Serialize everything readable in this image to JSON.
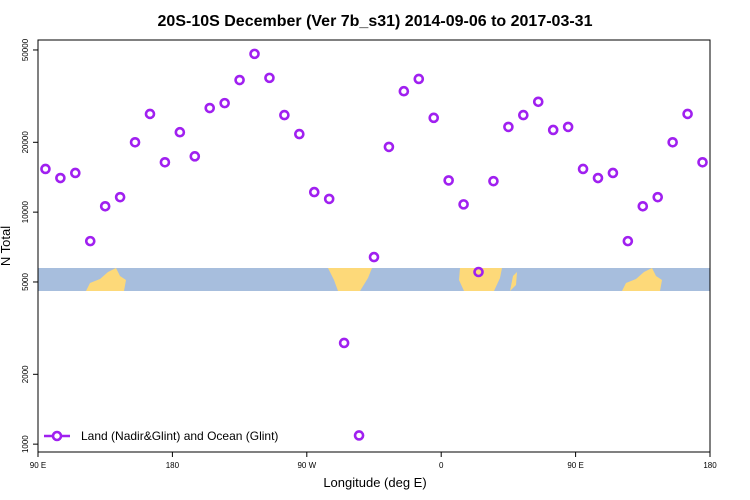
{
  "chart_data": {
    "type": "scatter",
    "title": "20S-10S December (Ver 7b_s31)   2014-09-06 to 2017-03-31",
    "x_label": "Longitude (deg E)",
    "y_label": "N Total",
    "xlim": [
      90,
      540
    ],
    "xticks": [
      {
        "value": 90,
        "label": "90 E"
      },
      {
        "value": 180,
        "label": "180"
      },
      {
        "value": 270,
        "label": "90 W"
      },
      {
        "value": 360,
        "label": "0"
      },
      {
        "value": 450,
        "label": "90 E"
      },
      {
        "value": 540,
        "label": "180"
      }
    ],
    "ylim": [
      925,
      55200
    ],
    "yticks": [
      1000,
      2000,
      5000,
      10000,
      20000,
      50000
    ],
    "yscale": "log",
    "legend_position": "bottom-left",
    "series": [
      {
        "name": "Land (Nadir&Glint) and Ocean (Glint)",
        "color": "#a020f0",
        "x": [
          95,
          105,
          115,
          125,
          135,
          145,
          155,
          165,
          175,
          185,
          195,
          205,
          215,
          225,
          235,
          245,
          255,
          265,
          275,
          285,
          295,
          305,
          315,
          325,
          335,
          345,
          355,
          365,
          375,
          385,
          395,
          405,
          415,
          425,
          435,
          445,
          455,
          465,
          475,
          485,
          495,
          505,
          515,
          525,
          535
        ],
        "values": [
          15350,
          14030,
          14750,
          7500,
          10600,
          11600,
          20000,
          26500,
          16400,
          22100,
          17400,
          28100,
          29500,
          37100,
          48100,
          37900,
          26200,
          21700,
          12200,
          11400,
          2730,
          1090,
          6400,
          19100,
          33200,
          37500,
          25500,
          13700,
          10800,
          5520,
          13600,
          23300,
          26200,
          29900,
          22600,
          23300,
          15350,
          14030,
          14750,
          7500,
          10600,
          11600,
          20000,
          26500,
          16400
        ]
      }
    ]
  }
}
